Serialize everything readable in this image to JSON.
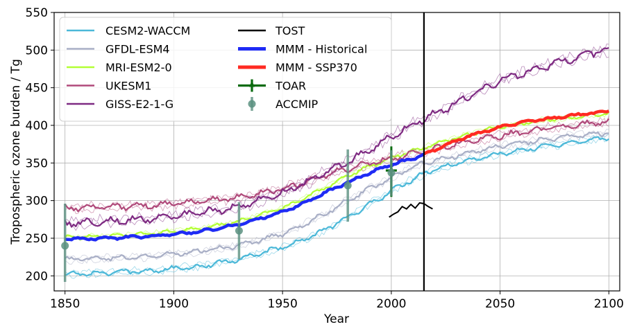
{
  "chart_data": {
    "type": "line",
    "xlabel": "Year",
    "ylabel": "Tropospheric ozone burden / Tg",
    "xlim": [
      1845,
      2105
    ],
    "ylim": [
      180,
      550
    ],
    "xticks": [
      1850,
      1900,
      1950,
      2000,
      2050,
      2100
    ],
    "yticks": [
      200,
      250,
      300,
      350,
      400,
      450,
      500,
      550
    ],
    "grid": true,
    "legend_position": "top-left",
    "vertical_line_x": 2015,
    "series": [
      {
        "name": "CESM2-WACCM",
        "color": "#4bb8d8",
        "x": [
          1850,
          1870,
          1890,
          1910,
          1930,
          1950,
          1960,
          1970,
          1980,
          1990,
          2000,
          2010,
          2015,
          2030,
          2050,
          2070,
          2090,
          2100
        ],
        "y": [
          203,
          204,
          207,
          212,
          222,
          238,
          248,
          262,
          278,
          295,
          313,
          328,
          336,
          350,
          362,
          372,
          380,
          384
        ]
      },
      {
        "name": "GFDL-ESM4",
        "color": "#a9afc6",
        "x": [
          1850,
          1870,
          1890,
          1910,
          1930,
          1950,
          1960,
          1970,
          1980,
          1990,
          2000,
          2010,
          2015,
          2030,
          2050,
          2070,
          2090,
          2100
        ],
        "y": [
          222,
          223,
          226,
          232,
          240,
          256,
          268,
          283,
          300,
          316,
          330,
          345,
          350,
          360,
          372,
          381,
          388,
          390
        ]
      },
      {
        "name": "MRI-ESM2-0",
        "color": "#b2ff33",
        "x": [
          1850,
          1870,
          1890,
          1910,
          1930,
          1950,
          1960,
          1970,
          1980,
          1990,
          2000,
          2010,
          2015,
          2030,
          2050,
          2070,
          2090,
          2100
        ],
        "y": [
          251,
          253,
          256,
          262,
          272,
          290,
          303,
          318,
          333,
          345,
          357,
          366,
          370,
          384,
          398,
          407,
          413,
          416
        ]
      },
      {
        "name": "UKESM1",
        "color": "#b0497a",
        "x": [
          1850,
          1870,
          1890,
          1910,
          1930,
          1950,
          1960,
          1970,
          1980,
          1990,
          2000,
          2010,
          2015,
          2030,
          2050,
          2070,
          2090,
          2100
        ],
        "y": [
          290,
          291,
          294,
          298,
          304,
          316,
          324,
          334,
          342,
          350,
          356,
          362,
          365,
          376,
          386,
          395,
          402,
          406
        ]
      },
      {
        "name": "GISS-E2-1-G",
        "color": "#7e2a82",
        "x": [
          1850,
          1870,
          1890,
          1910,
          1930,
          1950,
          1960,
          1970,
          1980,
          1990,
          2000,
          2010,
          2015,
          2030,
          2050,
          2070,
          2090,
          2100
        ],
        "y": [
          270,
          272,
          276,
          283,
          292,
          310,
          323,
          338,
          352,
          368,
          385,
          402,
          408,
          430,
          460,
          478,
          495,
          500
        ]
      },
      {
        "name": "TOST",
        "color": "#000000",
        "x": [
          1999,
          2001,
          2003,
          2005,
          2007,
          2009,
          2011,
          2013,
          2015,
          2017,
          2019
        ],
        "y": [
          278,
          282,
          285,
          292,
          289,
          295,
          290,
          297,
          296,
          292,
          289
        ]
      },
      {
        "name": "MMM -  Historical",
        "color": "#1f2bf5",
        "x": [
          1850,
          1870,
          1890,
          1910,
          1930,
          1950,
          1960,
          1970,
          1980,
          1990,
          2000,
          2010,
          2015
        ],
        "y": [
          249,
          250,
          253,
          258,
          268,
          285,
          297,
          311,
          324,
          337,
          348,
          356,
          361
        ]
      },
      {
        "name": "MMM -  SSP370",
        "color": "#ff2a22",
        "x": [
          2015,
          2025,
          2035,
          2045,
          2055,
          2065,
          2075,
          2085,
          2095,
          2100
        ],
        "y": [
          361,
          374,
          385,
          394,
          401,
          406,
          410,
          414,
          417,
          419
        ]
      }
    ],
    "points": [
      {
        "name": "TOAR",
        "color": "#0b6b10",
        "x": 2000,
        "y": 340,
        "err_low": 305,
        "err_high": 372
      },
      {
        "name": "ACCMIP",
        "color": "#5a9080",
        "x": [
          1850,
          1930,
          1980,
          2000
        ],
        "y": [
          240,
          260,
          320,
          337
        ],
        "err_low": [
          192,
          222,
          272,
          306
        ],
        "err_high": [
          296,
          298,
          368,
          367
        ]
      }
    ]
  }
}
